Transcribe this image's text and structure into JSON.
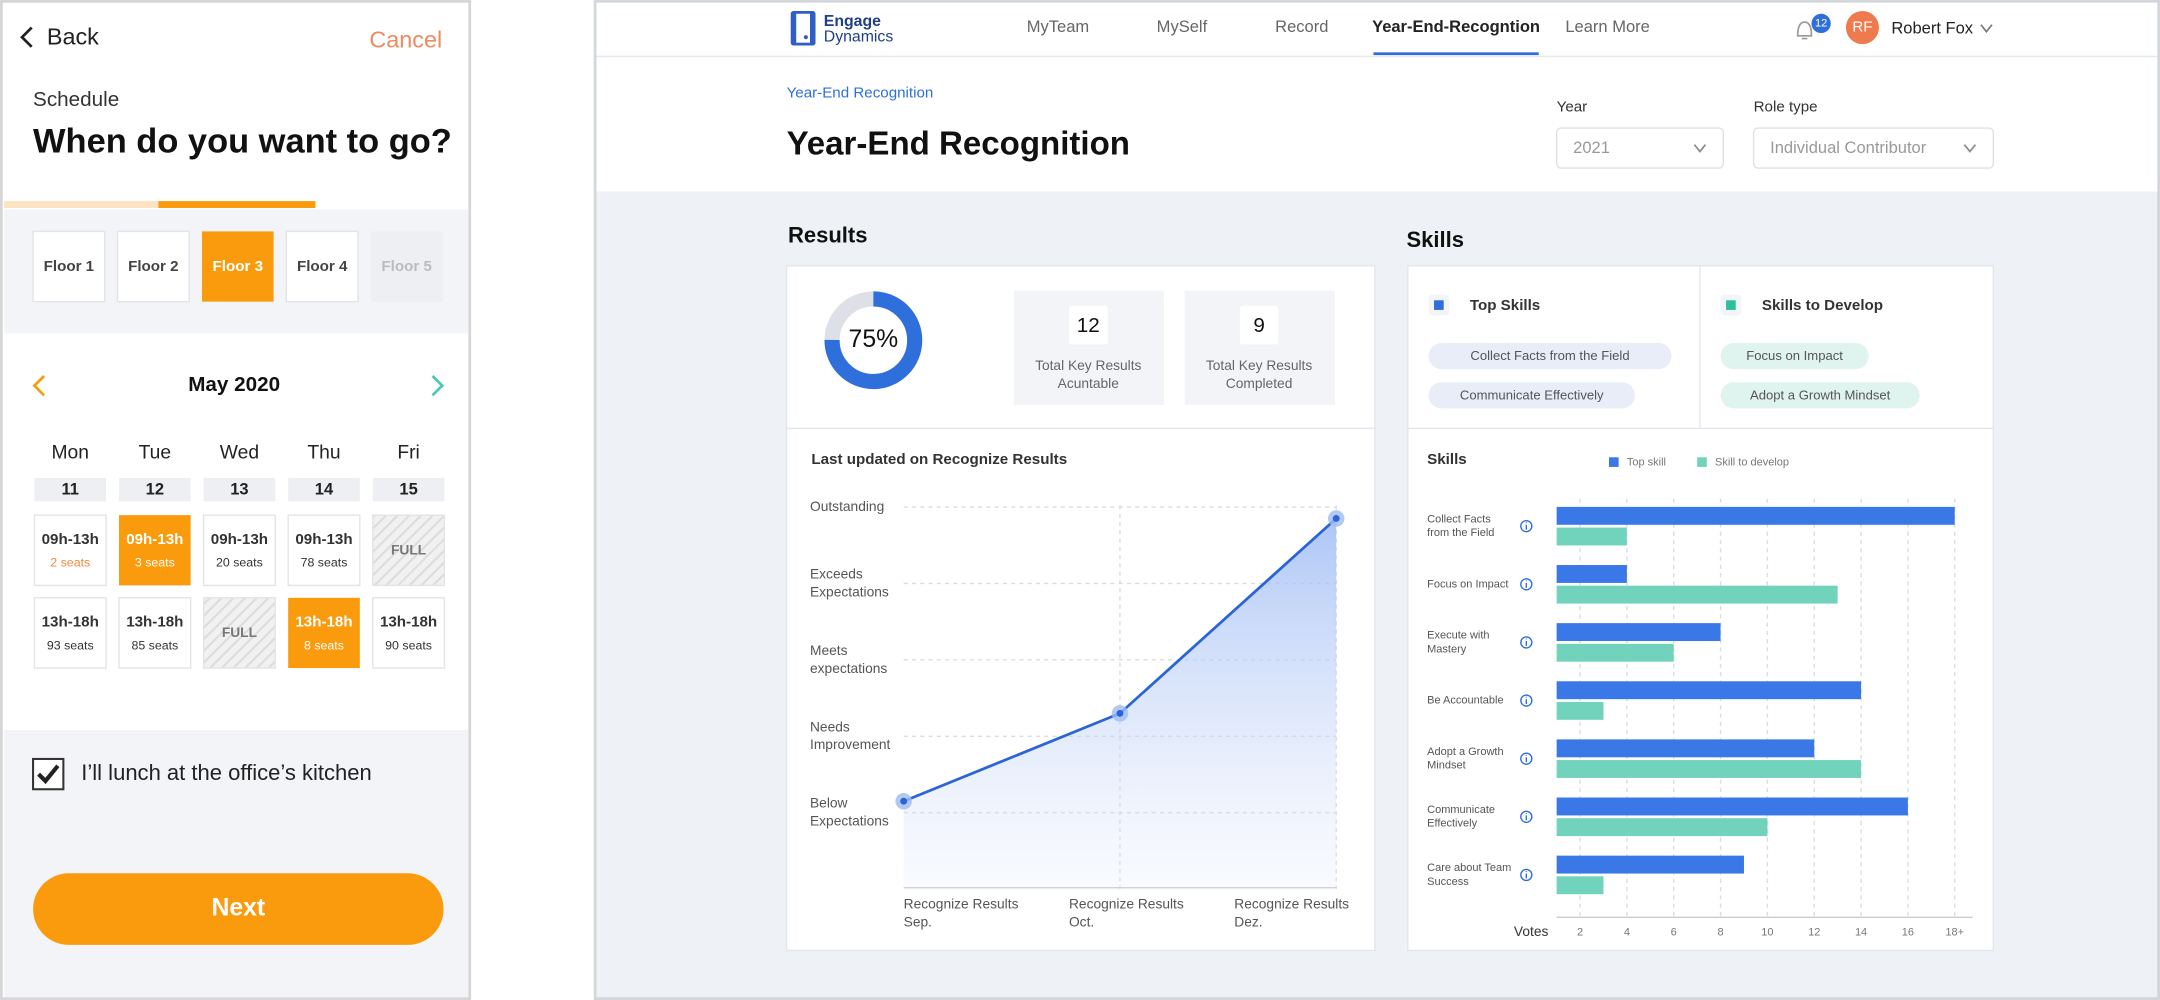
{
  "left_app": {
    "back": "Back",
    "cancel": "Cancel",
    "eyebrow": "Schedule",
    "title": "When do you want to go?",
    "floors": [
      {
        "label": "Floor 1",
        "state": "normal"
      },
      {
        "label": "Floor 2",
        "state": "normal"
      },
      {
        "label": "Floor 3",
        "state": "selected"
      },
      {
        "label": "Floor 4",
        "state": "normal"
      },
      {
        "label": "Floor 5",
        "state": "disabled"
      }
    ],
    "month": "May 2020",
    "days": [
      {
        "name": "Mon",
        "date": 11
      },
      {
        "name": "Tue",
        "date": 12
      },
      {
        "name": "Wed",
        "date": 13
      },
      {
        "name": "Thu",
        "date": 14
      },
      {
        "name": "Fri",
        "date": 15
      }
    ],
    "slots": [
      [
        {
          "time": "09h-13h",
          "seats": "2 seats",
          "state": "low"
        },
        {
          "time": "09h-13h",
          "seats": "3 seats",
          "state": "selected"
        },
        {
          "time": "09h-13h",
          "seats": "20 seats",
          "state": "normal"
        },
        {
          "time": "09h-13h",
          "seats": "78 seats",
          "state": "normal"
        },
        {
          "time": "FULL",
          "state": "full"
        }
      ],
      [
        {
          "time": "13h-18h",
          "seats": "93 seats",
          "state": "normal"
        },
        {
          "time": "13h-18h",
          "seats": "85 seats",
          "state": "normal"
        },
        {
          "time": "FULL",
          "state": "full"
        },
        {
          "time": "13h-18h",
          "seats": "8 seats",
          "state": "selected"
        },
        {
          "time": "13h-18h",
          "seats": "90 seats",
          "state": "normal"
        }
      ]
    ],
    "lunch": {
      "label": "I’ll lunch at the office’s kitchen",
      "checked": true
    },
    "next": "Next"
  },
  "dashboard": {
    "brand": {
      "name": "Engage",
      "sub": "Dynamics"
    },
    "nav": [
      {
        "label": "MyTeam",
        "active": false
      },
      {
        "label": "MySelf",
        "active": false
      },
      {
        "label": "Record",
        "active": false
      },
      {
        "label": "Year-End-Recogntion",
        "active": true
      },
      {
        "label": "Learn More",
        "active": false
      }
    ],
    "notifications": 12,
    "avatar": "RF",
    "user": "Robert Fox",
    "breadcrumb": "Year-End  Recognition",
    "title": "Year-End Recognition",
    "filters": [
      {
        "label": "Year",
        "value": "2021"
      },
      {
        "label": "Role type",
        "value": "Individual Contributor"
      }
    ],
    "results": {
      "heading": "Results",
      "completion": {
        "value": 75,
        "label": "75%"
      },
      "kpis": [
        {
          "value": 12,
          "label": [
            "Total Key Results",
            "Acuntable"
          ]
        },
        {
          "value": 9,
          "label": [
            "Total Key Results",
            "Completed"
          ]
        }
      ]
    },
    "results_chart": {
      "type": "line",
      "title": "Last updated on Recognize Results",
      "categories": [
        [
          "Recognize Results",
          "Sep."
        ],
        [
          "Recognize Results",
          "Oct."
        ],
        [
          "Recognize Results",
          "Dez."
        ]
      ],
      "series": [
        {
          "color": "#2a64d6",
          "values": [
            1.15,
            2.3,
            4.85
          ]
        }
      ],
      "ylim": [
        0,
        5.2
      ],
      "yticks": [
        {
          "value": 1,
          "label": "Below Expectations"
        },
        {
          "value": 2,
          "label": "Needs Improvement"
        },
        {
          "value": 3,
          "label": "Meets expectations"
        },
        {
          "value": 4,
          "label": "Exceeds Expectations"
        },
        {
          "value": 5,
          "label": "Outstanding"
        }
      ],
      "grid": true
    },
    "skills": {
      "heading": "Skills",
      "groups": [
        {
          "title": "Top Skills",
          "color": "#2f6fdc",
          "tag_color": "#e8edf7",
          "tags": [
            "Collect Facts from the Field",
            "Communicate Effectively"
          ]
        },
        {
          "title": "Skills to Develop",
          "color": "#2bbf9b",
          "tag_color": "#e0f4ef",
          "tags": [
            "Focus on Impact",
            "Adopt a Growth Mindset"
          ]
        }
      ]
    },
    "skills_chart": {
      "type": "bar",
      "orientation": "horizontal",
      "title": "Skills",
      "x_label": "Votes",
      "categories": [
        "Collect Facts from the Field",
        "Focus on Impact",
        "Execute with Mastery",
        "Be Accountable",
        "Adopt a Growth Mindset",
        "Communicate Effectively",
        "Care about Team Success"
      ],
      "series": [
        {
          "name": "Top skill",
          "color": "#3b78e7",
          "values": [
            18,
            4,
            8,
            14,
            12,
            16,
            9
          ]
        },
        {
          "name": "Skill to develop",
          "color": "#72d3bd",
          "values": [
            4,
            13,
            6,
            3,
            14,
            10,
            3
          ]
        }
      ],
      "xlim": [
        1,
        18
      ],
      "xticks": [
        2,
        4,
        6,
        8,
        10,
        12,
        14,
        16,
        {
          "value": 18,
          "label": "18+"
        }
      ],
      "grid": true
    }
  }
}
